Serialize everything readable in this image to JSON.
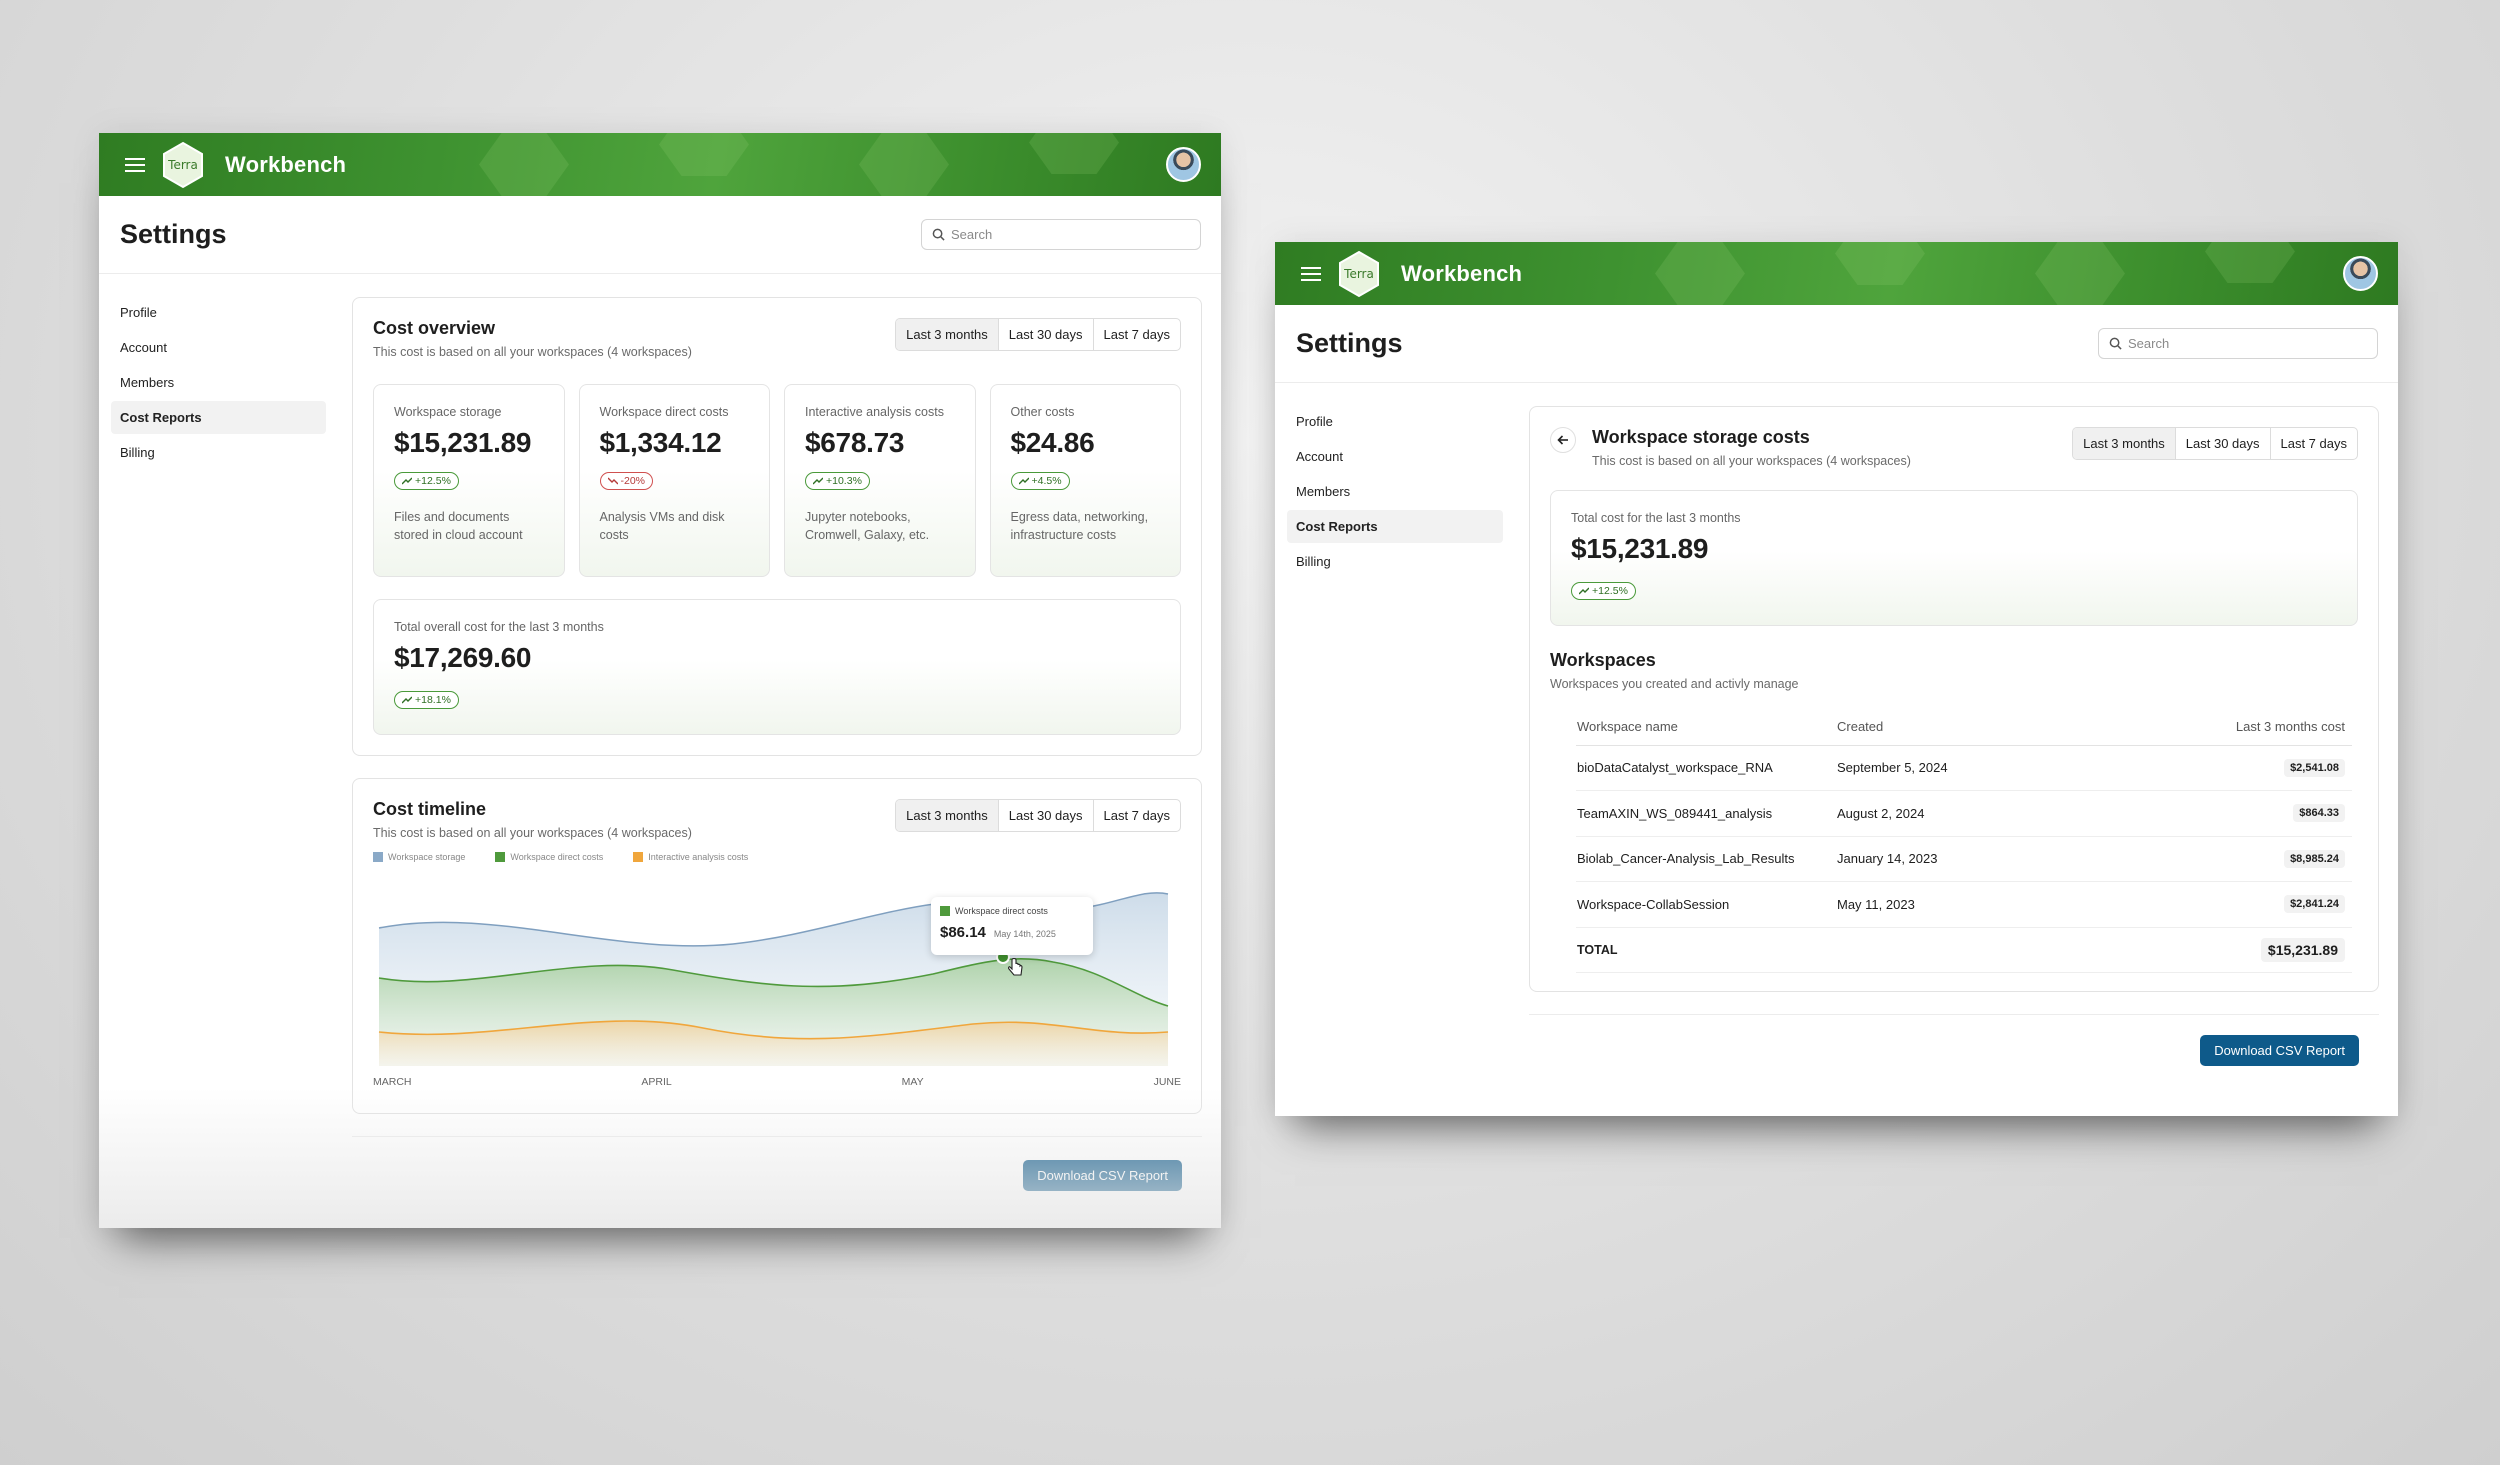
{
  "app": {
    "name": "Workbench",
    "logo_text": "Terra"
  },
  "page": {
    "title": "Settings",
    "search_placeholder": "Search"
  },
  "sidebar": {
    "items": [
      {
        "label": "Profile"
      },
      {
        "label": "Account"
      },
      {
        "label": "Members"
      },
      {
        "label": "Cost Reports",
        "active": true
      },
      {
        "label": "Billing"
      }
    ]
  },
  "time_ranges": [
    "Last 3 months",
    "Last 30 days",
    "Last 7 days"
  ],
  "cost_overview": {
    "title": "Cost overview",
    "subtitle": "This cost is based on all your workspaces (4 workspaces)",
    "metrics": [
      {
        "label": "Workspace storage",
        "value": "$15,231.89",
        "change": "+12.5%",
        "trend": "up",
        "desc": "Files and documents stored in cloud account"
      },
      {
        "label": "Workspace direct costs",
        "value": "$1,334.12",
        "change": "-20%",
        "trend": "down",
        "desc": "Analysis VMs and disk costs"
      },
      {
        "label": "Interactive analysis costs",
        "value": "$678.73",
        "change": "+10.3%",
        "trend": "up",
        "desc": "Jupyter notebooks, Cromwell, Galaxy, etc."
      },
      {
        "label": "Other costs",
        "value": "$24.86",
        "change": "+4.5%",
        "trend": "up",
        "desc": "Egress data, networking, infrastructure costs"
      }
    ],
    "total": {
      "label": "Total overall cost for the last 3 months",
      "value": "$17,269.60",
      "change": "+18.1%"
    }
  },
  "cost_timeline": {
    "title": "Cost timeline",
    "subtitle": "This cost is based on all your workspaces (4 workspaces)",
    "legend": [
      "Workspace storage",
      "Workspace direct costs",
      "Interactive analysis costs"
    ],
    "tooltip": {
      "series": "Workspace direct costs",
      "value": "$86.14",
      "date": "May 14th, 2025"
    },
    "x_labels": [
      "MARCH",
      "APRIL",
      "MAY",
      "JUNE"
    ]
  },
  "colors": {
    "storage": "#8aa9c7",
    "direct": "#4f9a3c",
    "interactive": "#f0a63c",
    "brand": "#3e9230",
    "primary_button": "#0e5a8a"
  },
  "chart_data": {
    "type": "area",
    "x": [
      "MARCH",
      "APRIL",
      "MAY",
      "JUNE"
    ],
    "series": [
      {
        "name": "Workspace storage"
      },
      {
        "name": "Workspace direct costs"
      },
      {
        "name": "Interactive analysis costs"
      }
    ],
    "tooltip": {
      "series": "Workspace direct costs",
      "x": "May 14th, 2025",
      "y": 86.14
    },
    "legend": "top-left",
    "grid": false
  },
  "download_label": "Download CSV Report",
  "storage_detail": {
    "title": "Workspace storage costs",
    "subtitle": "This cost is based on all your workspaces (4 workspaces)",
    "total_label": "Total cost for the last 3 months",
    "total_value": "$15,231.89",
    "change": "+12.5%",
    "workspaces_title": "Workspaces",
    "workspaces_sub": "Workspaces you created and activly manage",
    "columns": [
      "Workspace name",
      "Created",
      "Last 3 months cost"
    ],
    "rows": [
      {
        "name": "bioDataCatalyst_workspace_RNA",
        "created": "September 5, 2024",
        "cost": "$2,541.08"
      },
      {
        "name": "TeamAXIN_WS_089441_analysis",
        "created": "August 2, 2024",
        "cost": "$864.33"
      },
      {
        "name": "Biolab_Cancer-Analysis_Lab_Results",
        "created": "January 14, 2023",
        "cost": "$8,985.24"
      },
      {
        "name": "Workspace-CollabSession",
        "created": "May 11, 2023",
        "cost": "$2,841.24"
      }
    ],
    "total_row": {
      "label": "TOTAL",
      "value": "$15,231.89"
    }
  }
}
